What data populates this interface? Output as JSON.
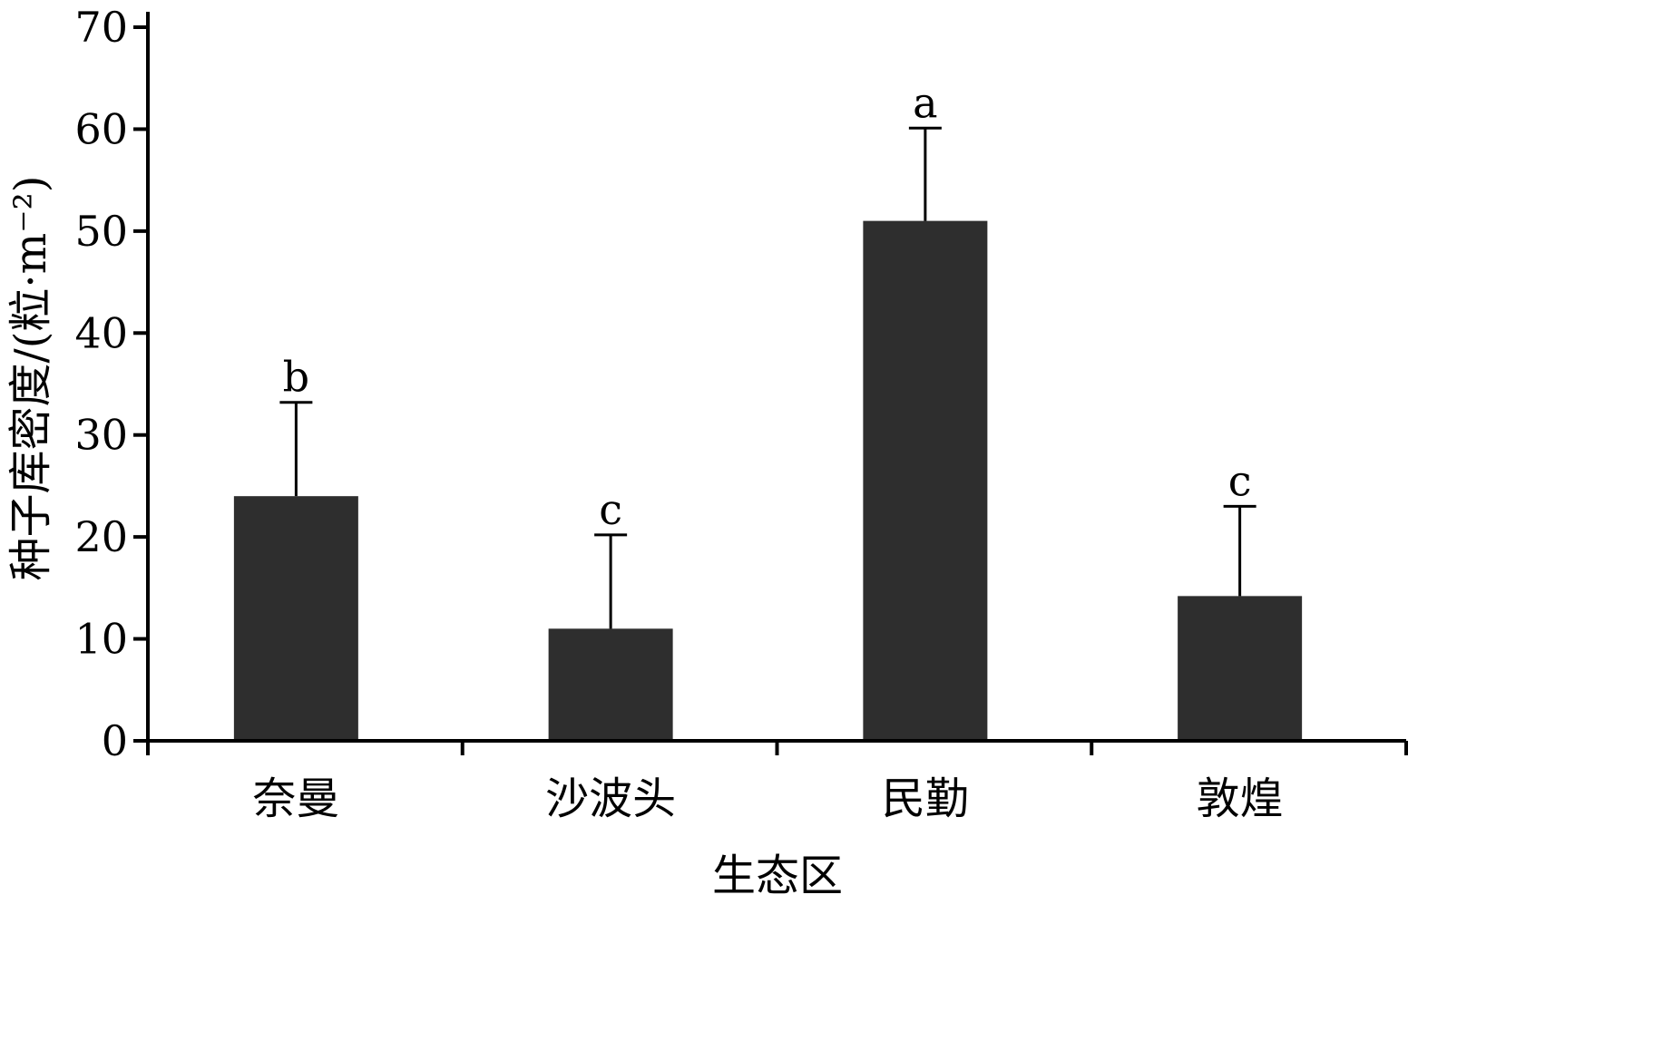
{
  "chart_data": {
    "type": "bar",
    "categories": [
      "奈曼",
      "沙波头",
      "民勤",
      "敦煌"
    ],
    "values": [
      24,
      11,
      51,
      14.2
    ],
    "error": [
      9.2,
      9.2,
      9.1,
      8.8
    ],
    "significance": [
      "b",
      "c",
      "a",
      "c"
    ],
    "xlabel": "生态区",
    "ylabel": "种子库密度/(粒·m⁻²)",
    "ylim": [
      0,
      70
    ],
    "yticks": [
      0,
      10,
      20,
      30,
      40,
      50,
      60,
      70
    ],
    "grid": false,
    "legend": "none",
    "colors": {
      "bar": "#2e2e2e",
      "axis": "#000000",
      "text": "#000000"
    }
  }
}
